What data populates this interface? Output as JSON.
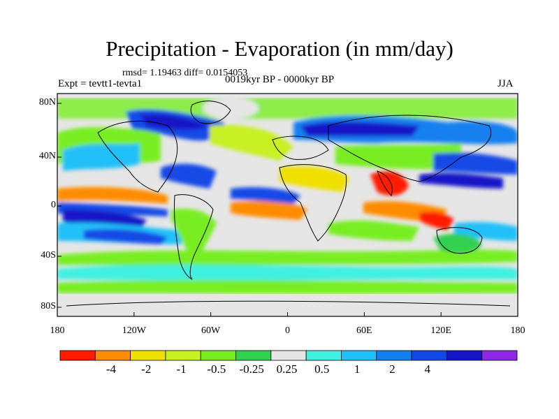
{
  "title": "Precipitation - Evaporation (in mm/day)",
  "stats": "rmsd= 1.19463 diff= 0.0154053",
  "experiment": "Expt = tevtt1-tevta1",
  "period": "0019kyr BP - 0000kyr BP",
  "season": "JJA",
  "lat_labels": [
    "80N",
    "40N",
    "0",
    "40S",
    "80S"
  ],
  "lon_labels": [
    "180",
    "120W",
    "60W",
    "0",
    "60E",
    "120E",
    "180"
  ],
  "colorbar": {
    "colors": [
      "#ff1a00",
      "#ff8c00",
      "#f0e000",
      "#c8f020",
      "#78ee20",
      "#30d050",
      "#e6e6e6",
      "#40f0e0",
      "#20c0f8",
      "#1480f0",
      "#1448e6",
      "#1414c8",
      "#8c28e6"
    ],
    "labels": [
      "-4",
      "-2",
      "-1",
      "-0.5",
      "-0.25",
      "0.25",
      "0.5",
      "1",
      "2",
      "4"
    ]
  }
}
